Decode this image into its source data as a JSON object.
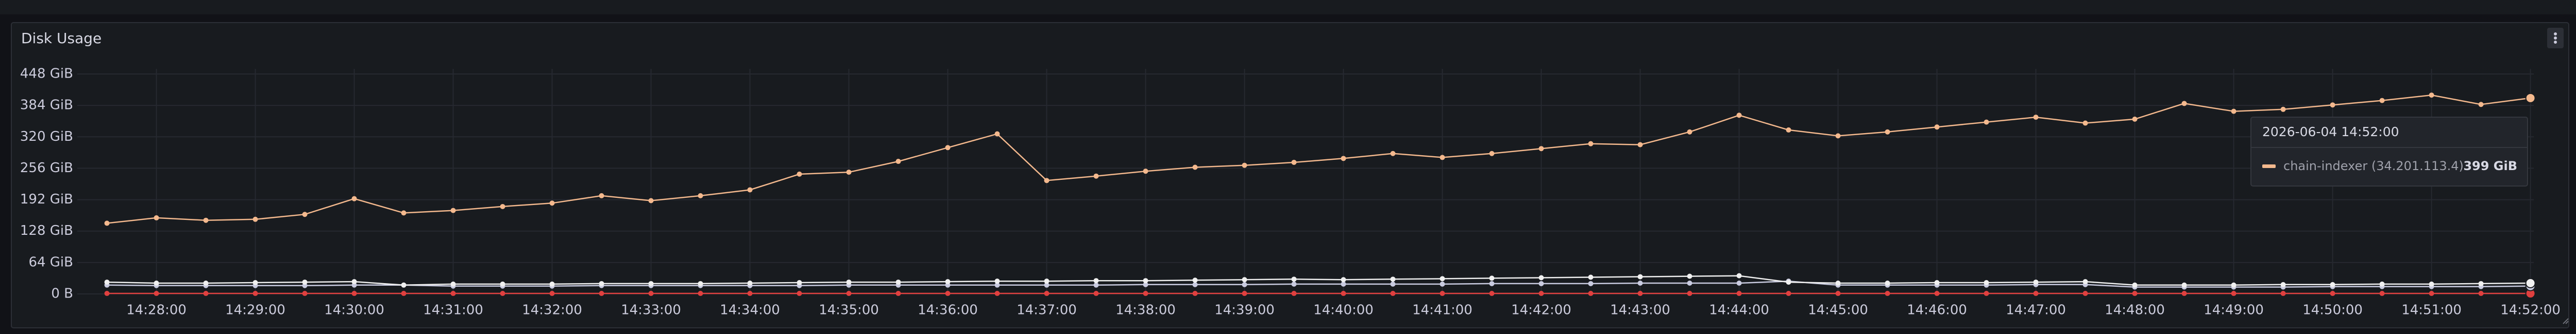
{
  "chart_data": {
    "type": "line",
    "title": "Disk Usage",
    "x": [
      "14:27:30",
      "14:28:00",
      "14:28:30",
      "14:29:00",
      "14:29:30",
      "14:30:00",
      "14:30:30",
      "14:31:00",
      "14:31:30",
      "14:32:00",
      "14:32:30",
      "14:33:00",
      "14:33:30",
      "14:34:00",
      "14:34:30",
      "14:35:00",
      "14:35:30",
      "14:36:00",
      "14:36:30",
      "14:37:00",
      "14:37:30",
      "14:38:00",
      "14:38:30",
      "14:39:00",
      "14:39:30",
      "14:40:00",
      "14:40:30",
      "14:41:00",
      "14:41:30",
      "14:42:00",
      "14:42:30",
      "14:43:00",
      "14:43:30",
      "14:44:00",
      "14:44:30",
      "14:45:00",
      "14:45:30",
      "14:46:00",
      "14:46:30",
      "14:47:00",
      "14:47:30",
      "14:48:00",
      "14:48:30",
      "14:49:00",
      "14:49:30",
      "14:50:00",
      "14:50:30",
      "14:51:00",
      "14:51:30",
      "14:52:00"
    ],
    "series": [
      {
        "name": "chain-indexer (34.201.113.4)",
        "color": "#f4b98e",
        "values": [
          144,
          155,
          150,
          152,
          162,
          194,
          165,
          170,
          178,
          185,
          200,
          190,
          200,
          212,
          244,
          248,
          270,
          298,
          326,
          231,
          240,
          250,
          258,
          262,
          268,
          276,
          286,
          278,
          286,
          296,
          306,
          304,
          330,
          364,
          334,
          322,
          330,
          340,
          350,
          360,
          348,
          356,
          388,
          372,
          376,
          385,
          394,
          405,
          386,
          399
        ]
      },
      {
        "color": "#f0f0f0",
        "values": [
          24,
          22,
          22,
          23,
          24,
          25,
          18,
          20,
          20,
          20,
          21,
          21,
          21,
          22,
          23,
          24,
          24,
          25,
          26,
          26,
          27,
          27,
          28,
          29,
          30,
          29,
          30,
          31,
          32,
          33,
          34,
          35,
          36,
          37,
          24,
          22,
          22,
          23,
          23,
          24,
          25,
          18,
          18,
          18,
          19,
          19,
          20,
          20,
          21,
          22
        ]
      },
      {
        "color": "#c9cbe0",
        "values": [
          18,
          17,
          17,
          17,
          17,
          18,
          18,
          16,
          16,
          16,
          17,
          17,
          17,
          17,
          17,
          18,
          18,
          18,
          18,
          18,
          18,
          19,
          19,
          19,
          20,
          20,
          20,
          20,
          21,
          21,
          21,
          22,
          22,
          22,
          26,
          18,
          18,
          18,
          18,
          19,
          19,
          14,
          14,
          14,
          14,
          15,
          15,
          15,
          15,
          16
        ]
      },
      {
        "color": "#e0403f",
        "values": [
          1,
          1,
          1,
          1,
          1,
          1,
          1,
          1,
          1,
          1,
          1,
          1,
          1,
          1,
          1,
          1,
          1,
          1,
          1,
          1,
          1,
          1,
          1,
          1,
          1,
          1,
          1,
          1,
          1,
          1,
          1,
          1,
          1,
          1,
          1,
          1,
          1,
          1,
          1,
          1,
          1,
          1,
          1,
          1,
          1,
          1,
          1,
          1,
          1,
          1
        ]
      }
    ],
    "xlim": [
      "14:27:12",
      "14:52:02"
    ],
    "xticks": [
      "14:28:00",
      "14:29:00",
      "14:30:00",
      "14:31:00",
      "14:32:00",
      "14:33:00",
      "14:34:00",
      "14:35:00",
      "14:36:00",
      "14:37:00",
      "14:38:00",
      "14:39:00",
      "14:40:00",
      "14:41:00",
      "14:42:00",
      "14:43:00",
      "14:44:00",
      "14:45:00",
      "14:46:00",
      "14:47:00",
      "14:48:00",
      "14:49:00",
      "14:50:00",
      "14:51:00",
      "14:52:00"
    ],
    "ylim": [
      0,
      448
    ],
    "yticks": [
      {
        "value": 0,
        "label": "0 B"
      },
      {
        "value": 64,
        "label": "64 GiB"
      },
      {
        "value": 128,
        "label": "128 GiB"
      },
      {
        "value": 192,
        "label": "192 GiB"
      },
      {
        "value": 256,
        "label": "256 GiB"
      },
      {
        "value": 320,
        "label": "320 GiB"
      },
      {
        "value": 384,
        "label": "384 GiB"
      },
      {
        "value": 448,
        "label": "448 GiB"
      }
    ],
    "grid": true,
    "tooltip": {
      "title": "2026-06-04 14:52:00",
      "value_label": "399 GiB"
    }
  }
}
